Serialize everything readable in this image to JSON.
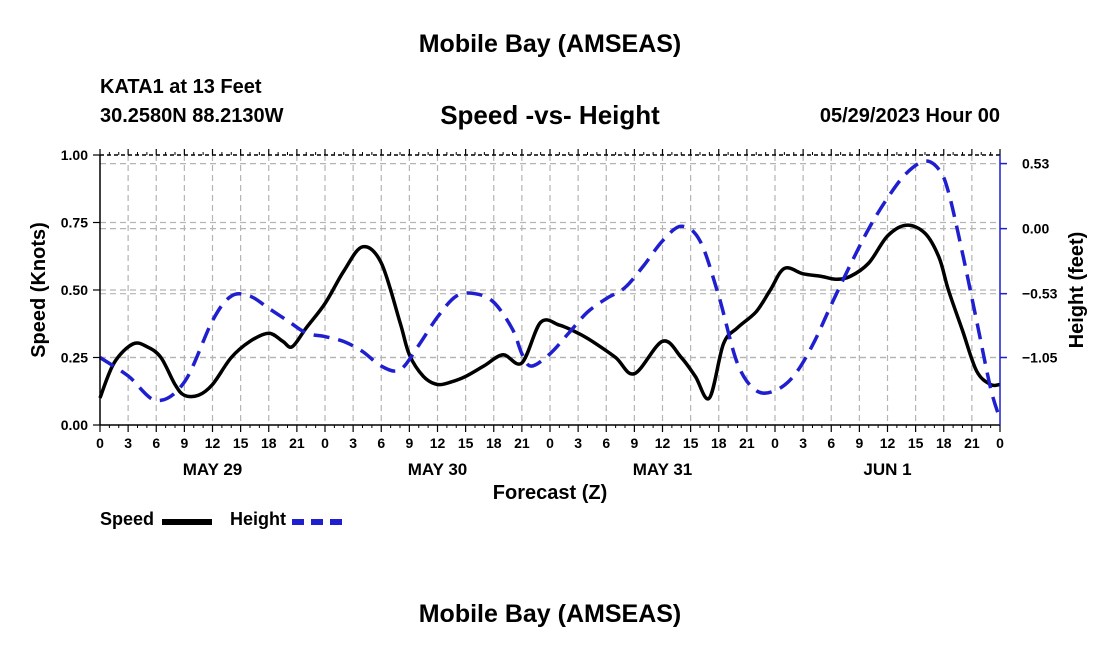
{
  "header": {
    "title_top": "Mobile Bay (AMSEAS)",
    "station": "KATA1 at 13 Feet",
    "coords": "30.2580N  88.2130W",
    "subtitle": "Speed -vs- Height",
    "datetime": "05/29/2023 Hour 00",
    "title_bottom": "Mobile Bay (AMSEAS)"
  },
  "legend": {
    "speed_label": "Speed",
    "height_label": "Height"
  },
  "colors": {
    "speed": "#000000",
    "height": "#1f1fd0",
    "grid": "#b4b4b4"
  },
  "chart_data": {
    "type": "line",
    "title": "Speed -vs- Height",
    "xlabel": "Forecast (Z)",
    "ylabel": "Speed (Knots)",
    "y2label": "Height (feet)",
    "xlim": [
      0,
      96
    ],
    "ylim": [
      0,
      1.0
    ],
    "y2lim": [
      -1.6,
      0.6
    ],
    "x_tick_hours": [
      0,
      3,
      6,
      9,
      12,
      15,
      18,
      21,
      24,
      27,
      30,
      33,
      36,
      39,
      42,
      45,
      48,
      51,
      54,
      57,
      60,
      63,
      66,
      69,
      72,
      75,
      78,
      81,
      84,
      87,
      90,
      93,
      96
    ],
    "x_tick_labels": [
      "0",
      "3",
      "6",
      "9",
      "12",
      "15",
      "18",
      "21",
      "0",
      "3",
      "6",
      "9",
      "12",
      "15",
      "18",
      "21",
      "0",
      "3",
      "6",
      "9",
      "12",
      "15",
      "18",
      "21",
      "0",
      "3",
      "6",
      "9",
      "12",
      "15",
      "18",
      "21",
      "0"
    ],
    "day_labels": [
      {
        "hour": 12,
        "label": "MAY 29"
      },
      {
        "hour": 36,
        "label": "MAY 30"
      },
      {
        "hour": 60,
        "label": "MAY 31"
      },
      {
        "hour": 84,
        "label": "JUN 1"
      }
    ],
    "y_ticks": [
      0,
      0.25,
      0.5,
      0.75,
      1.0
    ],
    "y_tick_labels": [
      "0.00",
      "0.25",
      "0.50",
      "0.75",
      "1.00"
    ],
    "y2_ticks": [
      0.53,
      0.0,
      -0.53,
      -1.05
    ],
    "y2_tick_labels": [
      "0.53",
      "0.00",
      "−0.53",
      "−1.05"
    ],
    "grid": true,
    "series": [
      {
        "name": "Speed",
        "axis": "left",
        "style": "solid",
        "x": [
          0,
          1.5,
          3.5,
          5,
          6.5,
          8,
          9,
          10.5,
          12,
          14,
          16,
          18,
          19.5,
          20.5,
          22,
          24,
          26,
          28,
          30,
          32,
          33,
          34.5,
          36,
          37.5,
          39,
          41,
          43,
          45,
          47,
          49,
          51,
          52.5,
          55,
          57,
          60,
          62,
          63.5,
          65,
          66.5,
          68,
          70,
          71.5,
          73,
          75,
          77,
          78.5,
          80,
          82,
          84,
          86,
          88,
          89.5,
          90.5,
          92,
          93.5,
          95,
          96
        ],
        "values": [
          0.1,
          0.23,
          0.3,
          0.29,
          0.25,
          0.15,
          0.11,
          0.11,
          0.15,
          0.25,
          0.31,
          0.34,
          0.31,
          0.29,
          0.36,
          0.45,
          0.57,
          0.66,
          0.6,
          0.38,
          0.26,
          0.18,
          0.15,
          0.16,
          0.18,
          0.22,
          0.26,
          0.23,
          0.38,
          0.37,
          0.34,
          0.31,
          0.25,
          0.19,
          0.31,
          0.25,
          0.18,
          0.1,
          0.3,
          0.36,
          0.42,
          0.5,
          0.58,
          0.56,
          0.55,
          0.54,
          0.55,
          0.6,
          0.7,
          0.74,
          0.71,
          0.62,
          0.5,
          0.35,
          0.2,
          0.15,
          0.15
        ],
        "note": "smoothed approximation read from plot"
      },
      {
        "name": "Height",
        "axis": "right",
        "style": "dashed",
        "x": [
          0,
          3,
          6,
          9,
          12,
          14,
          16,
          18,
          20,
          22,
          24,
          26,
          28,
          30,
          32,
          34,
          36,
          38,
          40,
          42,
          44,
          45,
          46,
          48,
          50,
          52,
          54,
          56,
          58,
          60,
          62,
          64,
          66,
          68,
          70,
          72,
          74,
          76,
          78,
          80,
          82,
          84,
          86,
          88,
          89.5,
          90.5,
          92,
          93.5,
          95,
          96
        ],
        "values": [
          -1.05,
          -1.2,
          -1.4,
          -1.25,
          -0.75,
          -0.55,
          -0.55,
          -0.65,
          -0.75,
          -0.85,
          -0.88,
          -0.92,
          -1.0,
          -1.12,
          -1.15,
          -0.95,
          -0.72,
          -0.55,
          -0.53,
          -0.6,
          -0.82,
          -1.02,
          -1.12,
          -1.02,
          -0.85,
          -0.68,
          -0.57,
          -0.48,
          -0.3,
          -0.1,
          0.02,
          -0.1,
          -0.55,
          -1.1,
          -1.32,
          -1.32,
          -1.2,
          -0.95,
          -0.62,
          -0.3,
          0.0,
          0.25,
          0.45,
          0.55,
          0.48,
          0.3,
          -0.2,
          -0.75,
          -1.3,
          -1.55
        ],
        "note": "smoothed approximation read from plot"
      }
    ]
  }
}
